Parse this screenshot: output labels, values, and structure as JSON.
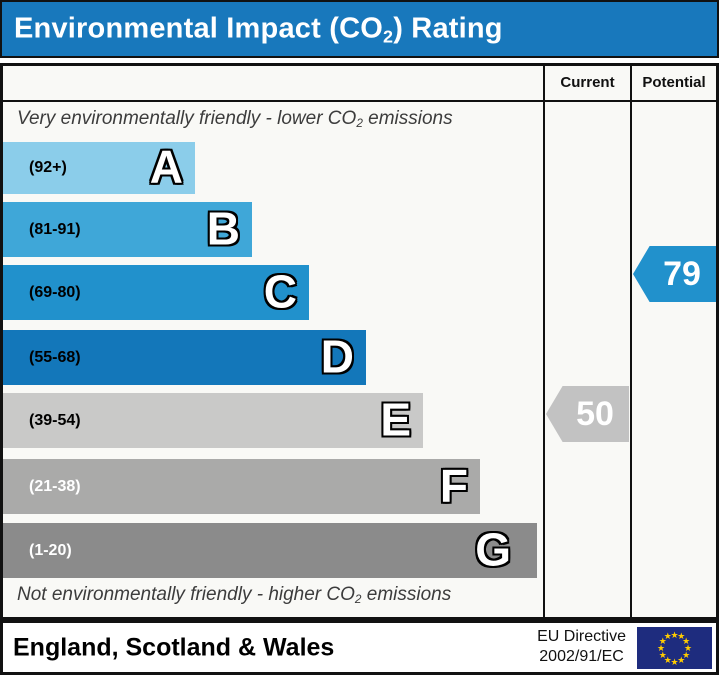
{
  "title": {
    "pre": "Environmental Impact (CO",
    "sub": "2",
    "post": ") Rating"
  },
  "columns": {
    "current": "Current",
    "potential": "Potential"
  },
  "captions": {
    "top_pre": "Very environmentally friendly - lower CO",
    "top_sub": "2",
    "top_post": " emissions",
    "bottom_pre": "Not environmentally friendly - higher CO",
    "bottom_sub": "2",
    "bottom_post": " emissions"
  },
  "bands": [
    {
      "letter": "A",
      "range": "(92+)",
      "color": "#8bcdea",
      "range_text_color": "#000000"
    },
    {
      "letter": "B",
      "range": "(81-91)",
      "color": "#3fa7d8",
      "range_text_color": "#000000"
    },
    {
      "letter": "C",
      "range": "(69-80)",
      "color": "#2191cc",
      "range_text_color": "#000000"
    },
    {
      "letter": "D",
      "range": "(55-68)",
      "color": "#1377ba",
      "range_text_color": "#000000"
    },
    {
      "letter": "E",
      "range": "(39-54)",
      "color": "#c9c9c8",
      "range_text_color": "#000000"
    },
    {
      "letter": "F",
      "range": "(21-38)",
      "color": "#aaaaa9",
      "range_text_color": "#ffffff"
    },
    {
      "letter": "G",
      "range": "(1-20)",
      "color": "#8b8b8b",
      "range_text_color": "#ffffff"
    }
  ],
  "current": {
    "value": "50",
    "band": "E",
    "color": "#c2c2c2"
  },
  "potential": {
    "value": "79",
    "band": "C",
    "color": "#2191cc"
  },
  "footer": {
    "region": "England, Scotland & Wales",
    "directive_line1": "EU Directive",
    "directive_line2": "2002/91/EC"
  },
  "chart_data": {
    "type": "bar",
    "title": "Environmental Impact (CO2) Rating",
    "categories": [
      "A",
      "B",
      "C",
      "D",
      "E",
      "F",
      "G"
    ],
    "band_ranges": [
      "92+",
      "81-91",
      "69-80",
      "55-68",
      "39-54",
      "21-38",
      "1-20"
    ],
    "band_colors": [
      "#8bcdea",
      "#3fa7d8",
      "#2191cc",
      "#1377ba",
      "#c9c9c8",
      "#aaaaa9",
      "#8b8b8b"
    ],
    "scale": [
      1,
      100
    ],
    "series": [
      {
        "name": "Current",
        "value": 50,
        "band": "E",
        "color": "#c2c2c2"
      },
      {
        "name": "Potential",
        "value": 79,
        "band": "C",
        "color": "#2191cc"
      }
    ],
    "top_note": "Very environmentally friendly - lower CO2 emissions",
    "bottom_note": "Not environmentally friendly - higher CO2 emissions",
    "region": "England, Scotland & Wales",
    "directive": "EU Directive 2002/91/EC",
    "legend_position": "none",
    "grid": false
  }
}
